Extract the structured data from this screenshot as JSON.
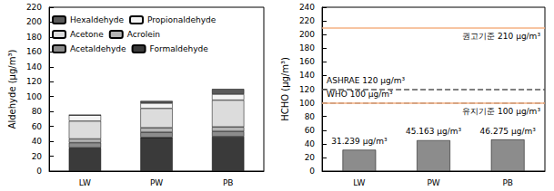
{
  "chart_data": [
    {
      "type": "bar",
      "stacked": true,
      "y_label": "Aldehyde (μg/m³)",
      "categories": [
        "LW",
        "PW",
        "PB"
      ],
      "series": [
        {
          "name": "Formaldehyde",
          "color": "#3a3a3a",
          "values": [
            31.2,
            45.2,
            46.3
          ]
        },
        {
          "name": "Acetaldehyde",
          "color": "#8c8c8c",
          "values": [
            7,
            7,
            7
          ]
        },
        {
          "name": "Acrolein",
          "color": "#b4b4b4",
          "values": [
            5,
            6,
            6
          ]
        },
        {
          "name": "Acetone",
          "color": "#dcdcdc",
          "values": [
            24,
            26,
            36
          ]
        },
        {
          "name": "Propionaldehyde",
          "color": "#f4f4f4",
          "values": [
            8,
            7,
            8
          ]
        },
        {
          "name": "Hexaldehyde",
          "color": "#5a5a5a",
          "values": [
            0,
            3,
            7
          ]
        }
      ],
      "ylim": [
        0,
        220
      ],
      "yticks": [
        0,
        20,
        40,
        60,
        80,
        100,
        120,
        140,
        160,
        180,
        200,
        220
      ],
      "legend": "top-left"
    },
    {
      "type": "bar",
      "y_label": "HCHO (μg/m³)",
      "categories": [
        "LW",
        "PW",
        "PB"
      ],
      "values": [
        31.239,
        45.163,
        46.275
      ],
      "value_labels": [
        "31.239 μg/m³",
        "45.163 μg/m³",
        "46.275 μg/m³"
      ],
      "color": "#8c8c8c",
      "data_labels": true,
      "ylim": [
        0,
        240
      ],
      "yticks": [
        0,
        20,
        40,
        60,
        80,
        100,
        120,
        140,
        160,
        180,
        200,
        220,
        240
      ],
      "reference_lines": [
        {
          "value": 210,
          "label": "권고기준 210 μg/m³",
          "color": "#f4b183",
          "line_style": "solid",
          "position": "end"
        },
        {
          "value": 120,
          "label": "ASHRAE 120 μg/m³",
          "color": "#555555",
          "line_style": "dashed",
          "position": "start"
        },
        {
          "value": 100,
          "label": "WHO 100 μg/m³",
          "color": "#555555",
          "line_style": "dashed",
          "position": "start"
        },
        {
          "value": 100,
          "label": "유지기준 100 μg/m³",
          "color": "#f4b183",
          "line_style": "solid",
          "position": "end"
        }
      ]
    }
  ]
}
